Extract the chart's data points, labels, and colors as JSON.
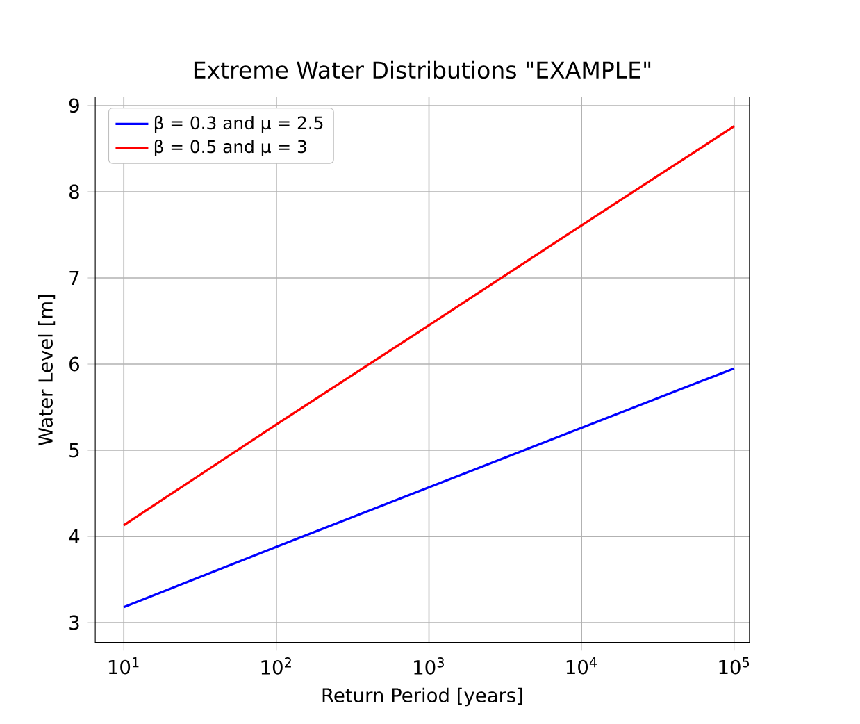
{
  "chart_data": {
    "type": "line",
    "title": "Extreme Water Distributions \"EXAMPLE\"",
    "xlabel": "Return Period [years]",
    "ylabel": "Water Level [m]",
    "log": "x",
    "grid": true,
    "legend": "top left",
    "marker": "none",
    "line_style": "solid",
    "xlim": [
      6.5,
      126000
    ],
    "ylim": [
      2.77,
      9.1
    ],
    "xticks": [
      {
        "value": 10,
        "label": "10$^{1}$"
      },
      {
        "value": 100,
        "label": "10$^{2}$"
      },
      {
        "value": 1000,
        "label": "10$^{3}$"
      },
      {
        "value": 10000,
        "label": "10$^{4}$"
      },
      {
        "value": 100000,
        "label": "10$^{5}$"
      }
    ],
    "yticks": [
      3,
      4,
      5,
      6,
      7,
      8,
      9
    ],
    "x": [
      10,
      100,
      1000,
      10000,
      100000
    ],
    "series": [
      {
        "name": "β = 0.3 and μ = 2.5",
        "color": "#0000ff",
        "values": [
          3.18,
          3.88,
          4.57,
          5.26,
          5.95
        ]
      },
      {
        "name": "β = 0.5 and μ = 3",
        "color": "#ff0000",
        "values": [
          4.13,
          5.3,
          6.45,
          7.61,
          8.76
        ]
      }
    ]
  }
}
